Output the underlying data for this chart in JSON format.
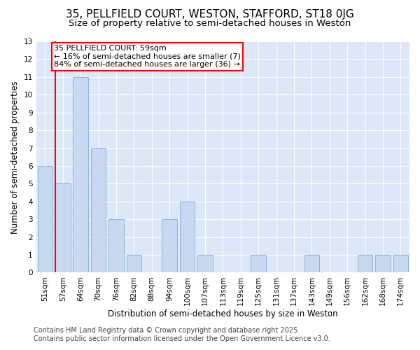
{
  "title": "35, PELLFIELD COURT, WESTON, STAFFORD, ST18 0JG",
  "subtitle": "Size of property relative to semi-detached houses in Weston",
  "xlabel": "Distribution of semi-detached houses by size in Weston",
  "ylabel": "Number of semi-detached properties",
  "categories": [
    "51sqm",
    "57sqm",
    "64sqm",
    "70sqm",
    "76sqm",
    "82sqm",
    "88sqm",
    "94sqm",
    "100sqm",
    "107sqm",
    "113sqm",
    "119sqm",
    "125sqm",
    "131sqm",
    "137sqm",
    "143sqm",
    "149sqm",
    "156sqm",
    "162sqm",
    "168sqm",
    "174sqm"
  ],
  "values": [
    6,
    5,
    11,
    7,
    3,
    1,
    0,
    3,
    4,
    1,
    0,
    0,
    1,
    0,
    0,
    1,
    0,
    0,
    1,
    1,
    1
  ],
  "bar_color": "#c8d8f0",
  "bar_edge_color": "#8ab4dc",
  "highlight_index": 1,
  "red_line_color": "#ff0000",
  "ylim": [
    0,
    13
  ],
  "yticks": [
    0,
    1,
    2,
    3,
    4,
    5,
    6,
    7,
    8,
    9,
    10,
    11,
    12,
    13
  ],
  "annotation_text": "35 PELLFIELD COURT: 59sqm\n← 16% of semi-detached houses are smaller (7)\n84% of semi-detached houses are larger (36) →",
  "footer_line1": "Contains HM Land Registry data © Crown copyright and database right 2025.",
  "footer_line2": "Contains public sector information licensed under the Open Government Licence v3.0.",
  "bg_color": "#ffffff",
  "plot_bg_color": "#dce8f8",
  "grid_color": "#ffffff",
  "title_fontsize": 11,
  "subtitle_fontsize": 9.5,
  "axis_label_fontsize": 8.5,
  "tick_fontsize": 7.5,
  "annotation_fontsize": 8,
  "footer_fontsize": 7
}
